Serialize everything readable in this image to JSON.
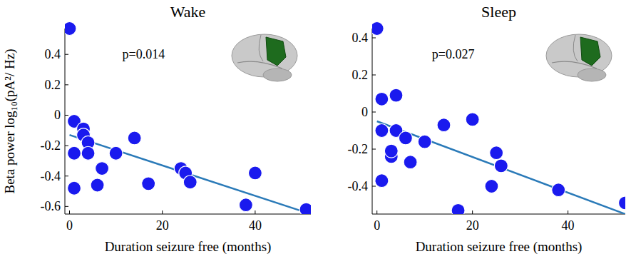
{
  "chart_data": [
    {
      "type": "scatter",
      "title": "Wake",
      "annotation": "p=0.014",
      "x_label": "Duration seizure free (months)",
      "y_label": "Beta power log₁₀(pA²/ Hz)",
      "xlim": [
        -1,
        52
      ],
      "xticks": [
        0,
        20,
        40
      ],
      "ylim": [
        -0.65,
        0.57
      ],
      "yticks": [
        -0.6,
        -0.4,
        -0.2,
        0,
        0.2,
        0.4
      ],
      "series": [
        {
          "type": "scatter",
          "marker": "circle",
          "color": "#1a1aee",
          "x": [
            0,
            1,
            1,
            1,
            3,
            3,
            4,
            4,
            6,
            7,
            10,
            14,
            17,
            24,
            25,
            26,
            38,
            40,
            51
          ],
          "values": [
            0.57,
            -0.04,
            -0.25,
            -0.48,
            -0.09,
            -0.13,
            -0.18,
            -0.25,
            -0.46,
            -0.35,
            -0.25,
            -0.15,
            -0.45,
            -0.35,
            -0.38,
            -0.44,
            -0.59,
            -0.38,
            -0.62
          ]
        },
        {
          "type": "line",
          "line_style": "solid",
          "color": "#2a7ab8",
          "x": [
            0,
            51
          ],
          "values": [
            -0.13,
            -0.64
          ]
        }
      ]
    },
    {
      "type": "scatter",
      "title": "Sleep",
      "annotation": "p=0.027",
      "x_label": "Duration seizure free (months)",
      "xlim": [
        -1,
        52
      ],
      "xticks": [
        0,
        20,
        40
      ],
      "ylim": [
        -0.55,
        0.45
      ],
      "yticks": [
        -0.4,
        -0.2,
        0,
        0.2,
        0.4
      ],
      "series": [
        {
          "type": "scatter",
          "marker": "circle",
          "color": "#1a1aee",
          "x": [
            0,
            1,
            1,
            1,
            3,
            3,
            4,
            4,
            6,
            7,
            10,
            14,
            17,
            20,
            24,
            25,
            26,
            38,
            52
          ],
          "values": [
            0.45,
            0.07,
            -0.1,
            -0.37,
            -0.24,
            -0.21,
            0.09,
            -0.1,
            -0.14,
            -0.27,
            -0.16,
            -0.07,
            -0.53,
            -0.04,
            -0.4,
            -0.22,
            -0.29,
            -0.42,
            -0.49
          ]
        },
        {
          "type": "line",
          "line_style": "solid",
          "color": "#2a7ab8",
          "x": [
            0,
            52
          ],
          "values": [
            -0.05,
            -0.55
          ]
        }
      ]
    }
  ]
}
